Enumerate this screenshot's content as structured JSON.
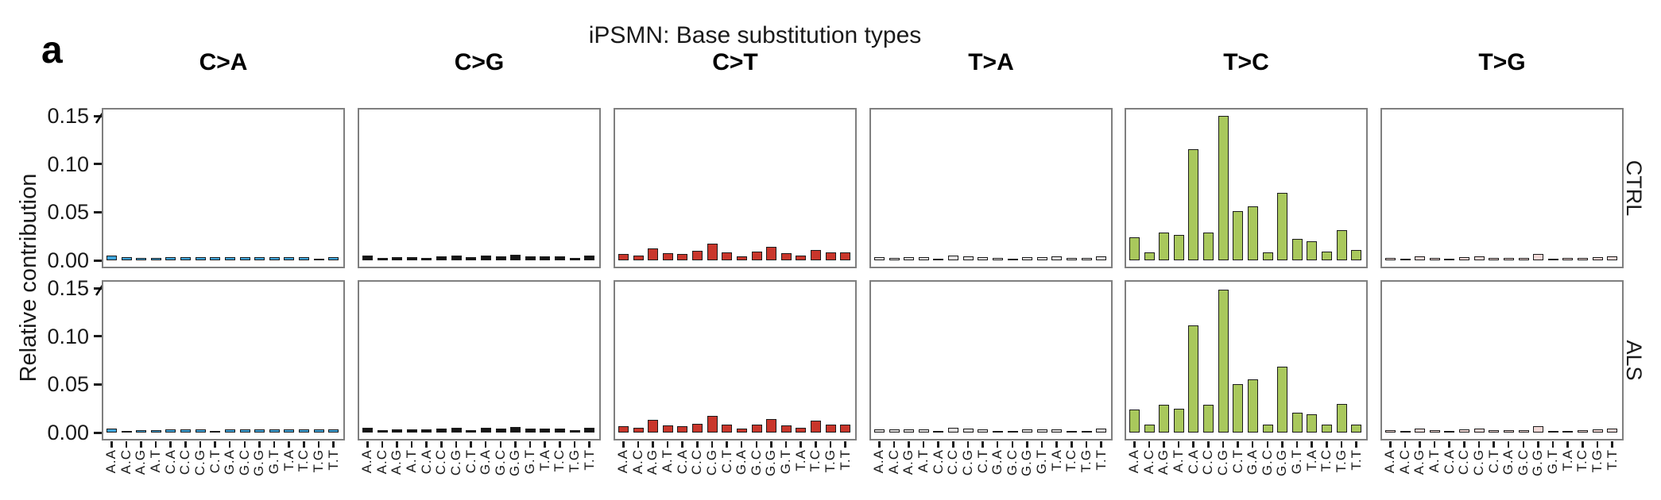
{
  "figure": {
    "panel_label": "a"
  },
  "chart_data": {
    "type": "bar",
    "title": "iPSMN: Base substitution types",
    "ylabel": "Relative contribution",
    "ylim": [
      0,
      0.15
    ],
    "ytick_values": [
      0,
      0.05,
      0.1,
      0.15
    ],
    "ytick_labels": [
      "0.00",
      "0.05",
      "0.10",
      "0.15"
    ],
    "categories": [
      "A.A",
      "A.C",
      "A.G",
      "A.T",
      "C.A",
      "C.C",
      "C.G",
      "C.T",
      "G.A",
      "G.C",
      "G.G",
      "G.T",
      "T.A",
      "T.C",
      "T.G",
      "T.T"
    ],
    "columns": [
      "C>A",
      "C>G",
      "C>T",
      "T>A",
      "T>C",
      "T>G"
    ],
    "row_facets": [
      "CTRL",
      "ALS"
    ],
    "colors": {
      "C>A": "#3FA5DB",
      "C>G": "#161616",
      "C>T": "#C9362B",
      "T>A": "#E2E0E0",
      "T>C": "#A9C85C",
      "T>G": "#F2D9D7"
    },
    "legend": "none",
    "grid": "off",
    "series": [
      {
        "facet": "CTRL",
        "substitution": "C>A",
        "values": [
          0.005,
          0.003,
          0.0025,
          0.0025,
          0.0035,
          0.0035,
          0.0035,
          0.003,
          0.0035,
          0.0035,
          0.0035,
          0.003,
          0.003,
          0.0035,
          0.0015,
          0.0035
        ]
      },
      {
        "facet": "CTRL",
        "substitution": "C>G",
        "values": [
          0.005,
          0.0025,
          0.003,
          0.003,
          0.0025,
          0.004,
          0.005,
          0.003,
          0.005,
          0.004,
          0.006,
          0.004,
          0.004,
          0.004,
          0.0025,
          0.005
        ]
      },
      {
        "facet": "CTRL",
        "substitution": "C>T",
        "values": [
          0.007,
          0.005,
          0.012,
          0.0075,
          0.0065,
          0.01,
          0.017,
          0.008,
          0.004,
          0.009,
          0.014,
          0.0075,
          0.005,
          0.011,
          0.008,
          0.008
        ]
      },
      {
        "facet": "CTRL",
        "substitution": "T>A",
        "values": [
          0.003,
          0.0025,
          0.003,
          0.003,
          0.002,
          0.005,
          0.0045,
          0.003,
          0.0025,
          0.002,
          0.003,
          0.003,
          0.004,
          0.0025,
          0.0025,
          0.004
        ]
      },
      {
        "facet": "CTRL",
        "substitution": "T>C",
        "values": [
          0.024,
          0.008,
          0.029,
          0.026,
          0.115,
          0.029,
          0.15,
          0.051,
          0.056,
          0.008,
          0.07,
          0.022,
          0.02,
          0.009,
          0.031,
          0.011
        ]
      },
      {
        "facet": "CTRL",
        "substitution": "T>G",
        "values": [
          0.0025,
          0.002,
          0.004,
          0.0025,
          0.002,
          0.003,
          0.0045,
          0.0025,
          0.0025,
          0.0025,
          0.0065,
          0.002,
          0.0025,
          0.0025,
          0.0035,
          0.004
        ]
      },
      {
        "facet": "ALS",
        "substitution": "C>A",
        "values": [
          0.004,
          0.002,
          0.0025,
          0.0025,
          0.003,
          0.003,
          0.0035,
          0.002,
          0.0035,
          0.0035,
          0.003,
          0.003,
          0.003,
          0.0035,
          0.003,
          0.003
        ]
      },
      {
        "facet": "ALS",
        "substitution": "C>G",
        "values": [
          0.005,
          0.0025,
          0.003,
          0.003,
          0.003,
          0.004,
          0.005,
          0.0025,
          0.005,
          0.004,
          0.006,
          0.004,
          0.004,
          0.004,
          0.0025,
          0.005
        ]
      },
      {
        "facet": "ALS",
        "substitution": "C>T",
        "values": [
          0.0065,
          0.005,
          0.013,
          0.0075,
          0.0065,
          0.009,
          0.017,
          0.008,
          0.004,
          0.008,
          0.014,
          0.0075,
          0.005,
          0.012,
          0.008,
          0.008
        ]
      },
      {
        "facet": "ALS",
        "substitution": "T>A",
        "values": [
          0.003,
          0.003,
          0.003,
          0.003,
          0.002,
          0.005,
          0.0045,
          0.003,
          0.002,
          0.002,
          0.003,
          0.003,
          0.003,
          0.002,
          0.002,
          0.004
        ]
      },
      {
        "facet": "ALS",
        "substitution": "T>C",
        "values": [
          0.024,
          0.008,
          0.029,
          0.025,
          0.111,
          0.029,
          0.148,
          0.05,
          0.055,
          0.008,
          0.068,
          0.021,
          0.019,
          0.008,
          0.03,
          0.008
        ]
      },
      {
        "facet": "ALS",
        "substitution": "T>G",
        "values": [
          0.0025,
          0.002,
          0.004,
          0.0025,
          0.002,
          0.003,
          0.0045,
          0.0025,
          0.0025,
          0.0025,
          0.0065,
          0.002,
          0.002,
          0.0025,
          0.0035,
          0.004
        ]
      }
    ]
  }
}
